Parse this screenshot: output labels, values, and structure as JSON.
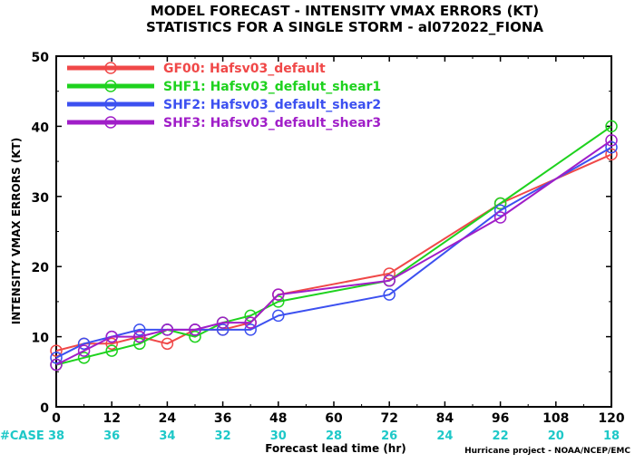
{
  "chart_data": {
    "type": "line",
    "title_line1": "MODEL FORECAST - INTENSITY VMAX ERRORS (KT)",
    "title_line2": "STATISTICS FOR A SINGLE STORM - al072022_FIONA",
    "xlabel": "Forecast lead time (hr)",
    "ylabel": "INTENSITY VMAX ERRORS (KT)",
    "xlim": [
      0,
      120
    ],
    "ylim": [
      0,
      50
    ],
    "x_ticks": [
      0,
      12,
      24,
      36,
      48,
      60,
      72,
      84,
      96,
      108,
      120
    ],
    "y_ticks": [
      0,
      10,
      20,
      30,
      40,
      50
    ],
    "case_label": "#CASE",
    "case_counts": [
      38,
      36,
      34,
      32,
      30,
      28,
      26,
      24,
      22,
      20,
      18
    ],
    "credit": "Hurricane project - NOAA/NCEP/EMC",
    "legend_position": "top-left",
    "grid": false,
    "series": [
      {
        "name": "GF00: Hafsv03_default",
        "color": "#f04848",
        "x": [
          0,
          6,
          12,
          18,
          24,
          30,
          36,
          42,
          48,
          72,
          96,
          120
        ],
        "y": [
          8,
          9,
          9,
          10,
          9,
          11,
          11,
          12,
          16,
          19,
          29,
          36
        ]
      },
      {
        "name": "SHF1: Hafsv03_defalut_shear1",
        "color": "#1ed21e",
        "x": [
          0,
          6,
          12,
          18,
          24,
          30,
          36,
          42,
          48,
          72,
          96,
          120
        ],
        "y": [
          6,
          7,
          8,
          9,
          11,
          10,
          12,
          13,
          15,
          18,
          29,
          40
        ]
      },
      {
        "name": "SHF2: Hafsv03_default_shear2",
        "color": "#3c50f0",
        "x": [
          0,
          6,
          12,
          18,
          24,
          30,
          36,
          42,
          48,
          72,
          96,
          120
        ],
        "y": [
          7,
          9,
          10,
          11,
          11,
          11,
          11,
          11,
          13,
          16,
          28,
          37
        ]
      },
      {
        "name": "SHF3: Hafsv03_default_shear3",
        "color": "#a01ec8",
        "x": [
          0,
          6,
          12,
          18,
          24,
          30,
          36,
          42,
          48,
          72,
          96,
          120
        ],
        "y": [
          6,
          8,
          10,
          10,
          11,
          11,
          12,
          12,
          16,
          18,
          27,
          38
        ]
      }
    ]
  }
}
